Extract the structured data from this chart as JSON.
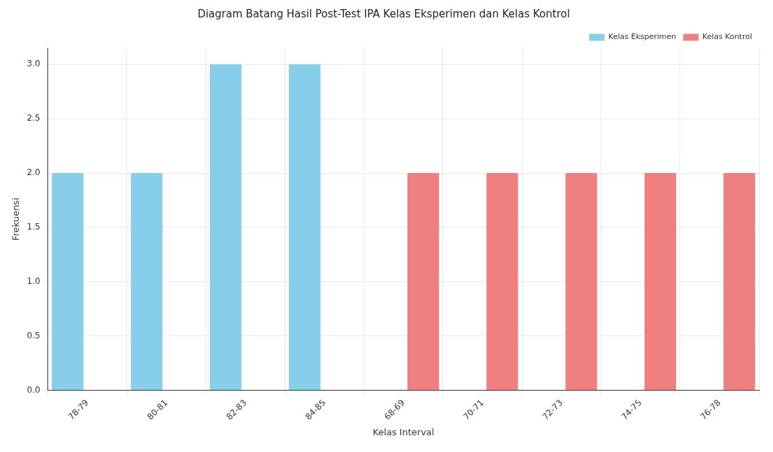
{
  "chart_data": {
    "type": "bar",
    "title": "Diagram Batang Hasil Post-Test IPA Kelas Eksperimen dan Kelas Kontrol",
    "xlabel": "Kelas Interval",
    "ylabel": "Frekuensi",
    "categories": [
      "78-79",
      "80-81",
      "82-83",
      "84-85",
      "68-69",
      "70-71",
      "72-73",
      "74-75",
      "76-78"
    ],
    "series": [
      {
        "name": "Kelas Eksperimen",
        "color": "#87ceeb",
        "values": [
          2,
          2,
          3,
          3,
          null,
          null,
          null,
          null,
          null
        ]
      },
      {
        "name": "Kelas Kontrol",
        "color": "#f08080",
        "values": [
          null,
          null,
          null,
          null,
          2,
          2,
          2,
          2,
          2
        ]
      }
    ],
    "ylim": [
      0,
      3.15
    ],
    "yticks": [
      {
        "value": 0,
        "label": "0.0"
      },
      {
        "value": 0.5,
        "label": "0.5"
      },
      {
        "value": 1,
        "label": "1.0"
      },
      {
        "value": 1.5,
        "label": "1.5"
      },
      {
        "value": 2,
        "label": "2.0"
      },
      {
        "value": 2.5,
        "label": "2.5"
      },
      {
        "value": 3,
        "label": "3.0"
      }
    ],
    "grid": true,
    "legend": "top right"
  }
}
